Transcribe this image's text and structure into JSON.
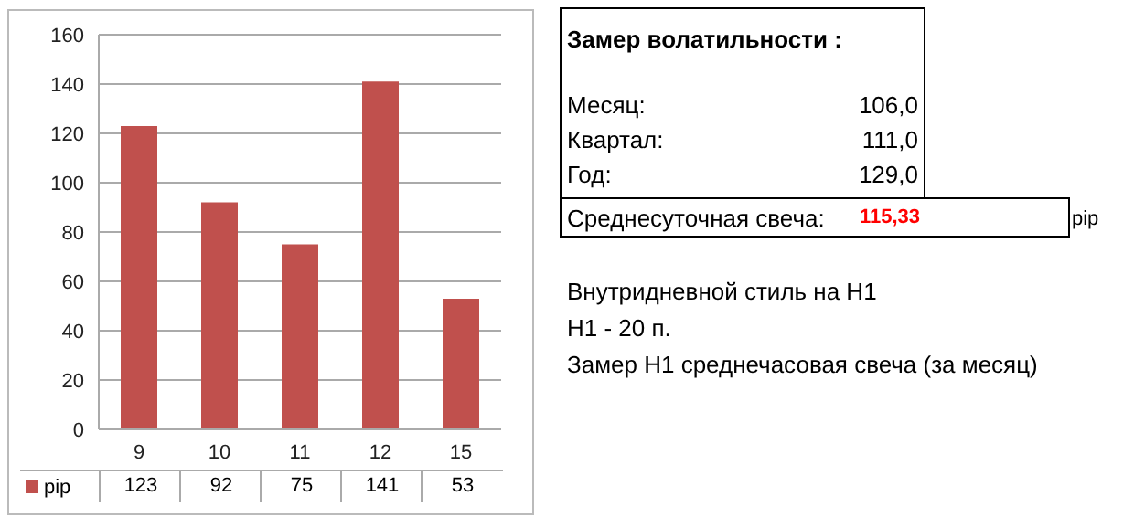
{
  "chart_data": {
    "type": "bar",
    "categories": [
      "9",
      "10",
      "11",
      "12",
      "15"
    ],
    "series": [
      {
        "name": "pip",
        "color": "#c0504d",
        "values": [
          123,
          92,
          75,
          141,
          53
        ]
      }
    ],
    "ylim": [
      0,
      160
    ],
    "yticks": [
      0,
      20,
      40,
      60,
      80,
      100,
      120,
      140,
      160
    ],
    "grid": "y",
    "legend": "bottom",
    "data_labels": true,
    "annotations": [
      "Замер  волатильности  :",
      "Месяц:",
      "106,0",
      "Квартал:",
      "111,0",
      "Год:",
      "129,0",
      "Среднесуточная свеча:",
      "115,33",
      "pip",
      "Внутридневной стиль на Н1",
      "Н1 - 20 п.",
      "Замер Н1 среднечасовая свеча (за месяц)"
    ]
  }
}
